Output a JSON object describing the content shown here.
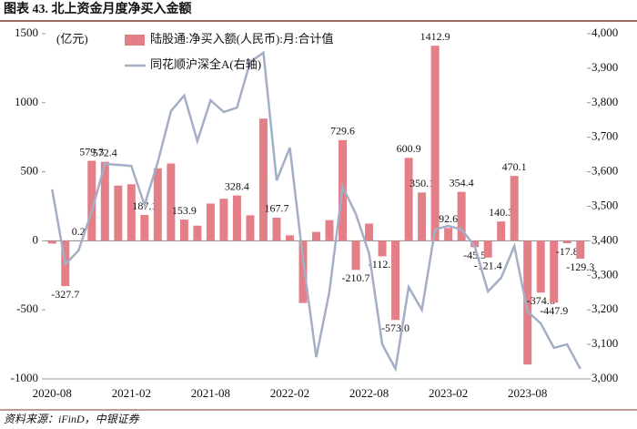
{
  "chart_data": {
    "type": "bar+line",
    "title": "图表 43.  北上资金月度净买入金额",
    "source": "资料来源：iFinD，中银证券",
    "y_label": "(亿元)",
    "categories": [
      "2020-08",
      null,
      null,
      null,
      null,
      null,
      "2021-02",
      null,
      null,
      null,
      null,
      null,
      "2021-08",
      null,
      null,
      null,
      null,
      null,
      "2022-02",
      null,
      null,
      null,
      null,
      null,
      "2022-08",
      null,
      null,
      null,
      null,
      null,
      "2023-02",
      null,
      null,
      null,
      null,
      null,
      "2023-08",
      null,
      null,
      null,
      null
    ],
    "series": [
      {
        "name": "陆股通:净买入额(人民币):月:合计值",
        "type": "bar",
        "color": "#e47f88",
        "values": [
          -20,
          -327.7,
          0.2,
          579.3,
          572.4,
          400,
          410,
          187.1,
          525,
          560,
          153.9,
          110,
          270,
          305,
          328.4,
          185,
          885,
          167.7,
          40,
          -450,
          65,
          150,
          729.6,
          -210.7,
          125,
          -112.3,
          -573.0,
          600.9,
          350.1,
          1412.9,
          92.6,
          354.4,
          -45.5,
          -121.4,
          140.3,
          470.1,
          -896,
          -374.6,
          -447.9,
          -17.8,
          -129.3
        ],
        "value_labels": [
          null,
          "-327.7",
          "0.2",
          "579.3",
          "572.4",
          null,
          null,
          "187.1",
          null,
          null,
          "153.9",
          null,
          null,
          null,
          "328.4",
          null,
          null,
          "167.7",
          null,
          null,
          null,
          null,
          "729.6",
          "-210.7",
          null,
          "-112.3",
          "-573.0",
          "600.9",
          "350.1",
          "1412.9",
          "92.6",
          "354.4",
          "-45.5",
          "-121.4",
          "140.3",
          "470.1",
          null,
          "-374.6",
          "-447.9",
          "-17.8",
          "-129.3"
        ]
      },
      {
        "name": "同花顺沪深全A(右轴)",
        "type": "line",
        "axis": "y2",
        "color": "#a4aec6",
        "values": [
          3549,
          3332,
          3372,
          3485,
          3623,
          3620,
          3617,
          3504,
          3628,
          3776,
          3821,
          3689,
          3807,
          3773,
          3786,
          3918,
          3945,
          3575,
          3670,
          3346,
          3063,
          3253,
          3557,
          3478,
          3364,
          3100,
          3029,
          3266,
          3200,
          3433,
          3443,
          3433,
          3385,
          3253,
          3293,
          3385,
          3195,
          3161,
          3090,
          3100,
          3029
        ]
      }
    ],
    "ylim": [
      -1000,
      1500
    ],
    "yticks": [
      -1000,
      -500,
      0,
      500,
      1000,
      1500
    ],
    "y2lim": [
      3000,
      4000
    ],
    "y2ticks": [
      {
        "value": 3000,
        "label": "3,000"
      },
      {
        "value": 3100,
        "label": "3,100"
      },
      {
        "value": 3200,
        "label": "3,200"
      },
      {
        "value": 3300,
        "label": "3,300"
      },
      {
        "value": 3400,
        "label": "3,400"
      },
      {
        "value": 3500,
        "label": "3,500"
      },
      {
        "value": 3600,
        "label": "3,600"
      },
      {
        "value": 3700,
        "label": "3,700"
      },
      {
        "value": 3800,
        "label": "3,800"
      },
      {
        "value": 3900,
        "label": "3,900"
      },
      {
        "value": 4000,
        "label": "4,000"
      }
    ]
  }
}
